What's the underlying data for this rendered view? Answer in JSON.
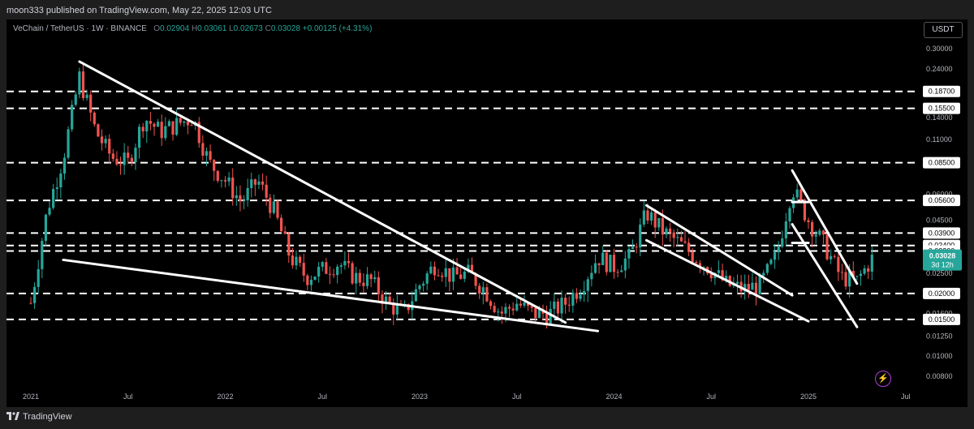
{
  "header": {
    "published_text": "moon333 published on TradingView.com, May 22, 2025 12:03 UTC"
  },
  "legend": {
    "symbol": "VeChain / TetherUS · 1W · BINANCE",
    "o_label": "O",
    "o_value": "0.02904",
    "h_label": "H",
    "h_value": "0.03061",
    "l_label": "L",
    "l_value": "0.02673",
    "c_label": "C",
    "c_value": "0.03028",
    "change": "+0.00125 (+4.31%)"
  },
  "currency_button": "USDT",
  "footer": {
    "brand": "TradingView"
  },
  "colors": {
    "up": "#26a69a",
    "down": "#ef5350",
    "background": "#000000",
    "lines": "#ffffff",
    "accent": "#b03fd8"
  },
  "icons": [
    "tradingview-logo-icon",
    "lightning-icon"
  ],
  "chart_data": {
    "type": "candlestick",
    "scale": "log",
    "y_tick_labels": [
      "0.30000",
      "0.24000",
      "0.14000",
      "0.11000",
      "0.06000",
      "0.04500",
      "0.02500",
      "0.01600",
      "0.01250",
      "0.01000",
      "0.00800"
    ],
    "x_tick_labels": [
      "2021",
      "Jul",
      "2022",
      "Jul",
      "2023",
      "Jul",
      "2024",
      "Jul",
      "2025",
      "Jul"
    ],
    "horizontal_levels": [
      "0.18700",
      "0.15500",
      "0.08500",
      "0.05600",
      "0.03900",
      "0.03400",
      "0.03200",
      "0.02000",
      "0.01500"
    ],
    "current_price": "0.03028",
    "current_countdown": "3d 12h",
    "trendlines": [
      {
        "from": [
          "2021-04",
          0.26
        ],
        "to": [
          "2023-10",
          0.0145
        ]
      },
      {
        "from": [
          "2021-03",
          0.029
        ],
        "to": [
          "2023-12",
          0.0132
        ]
      },
      {
        "from": [
          "2024-03",
          0.053
        ],
        "to": [
          "2024-12",
          0.0196
        ]
      },
      {
        "from": [
          "2024-03",
          0.036
        ],
        "to": [
          "2025-01",
          0.0147
        ]
      },
      {
        "from": [
          "2024-12",
          0.078
        ],
        "to": [
          "2025-04",
          0.0223
        ]
      },
      {
        "from": [
          "2024-12",
          0.043
        ],
        "to": [
          "2025-04",
          0.0138
        ]
      },
      {
        "from": [
          "2024-12",
          0.055
        ],
        "to": [
          "2025-01",
          0.055
        ]
      },
      {
        "from": [
          "2024-12",
          0.035
        ],
        "to": [
          "2025-01",
          0.035
        ]
      }
    ],
    "price_path": [
      [
        "2021-01",
        0.018
      ],
      [
        "2021-02",
        0.05
      ],
      [
        "2021-03",
        0.09
      ],
      [
        "2021-04",
        0.22
      ],
      [
        "2021-05",
        0.12
      ],
      [
        "2021-06",
        0.09
      ],
      [
        "2021-07",
        0.085
      ],
      [
        "2021-08",
        0.14
      ],
      [
        "2021-09",
        0.12
      ],
      [
        "2021-10",
        0.13
      ],
      [
        "2021-11",
        0.14
      ],
      [
        "2021-12",
        0.085
      ],
      [
        "2022-01",
        0.07
      ],
      [
        "2022-02",
        0.055
      ],
      [
        "2022-03",
        0.07
      ],
      [
        "2022-04",
        0.05
      ],
      [
        "2022-05",
        0.03
      ],
      [
        "2022-06",
        0.024
      ],
      [
        "2022-07",
        0.026
      ],
      [
        "2022-08",
        0.028
      ],
      [
        "2022-09",
        0.024
      ],
      [
        "2022-10",
        0.023
      ],
      [
        "2022-11",
        0.018
      ],
      [
        "2022-12",
        0.016
      ],
      [
        "2023-01",
        0.022
      ],
      [
        "2023-02",
        0.028
      ],
      [
        "2023-03",
        0.024
      ],
      [
        "2023-04",
        0.025
      ],
      [
        "2023-05",
        0.021
      ],
      [
        "2023-06",
        0.016
      ],
      [
        "2023-07",
        0.018
      ],
      [
        "2023-08",
        0.016
      ],
      [
        "2023-09",
        0.016
      ],
      [
        "2023-10",
        0.018
      ],
      [
        "2023-11",
        0.022
      ],
      [
        "2023-12",
        0.03
      ],
      [
        "2024-01",
        0.027
      ],
      [
        "2024-02",
        0.03
      ],
      [
        "2024-03",
        0.049
      ],
      [
        "2024-04",
        0.04
      ],
      [
        "2024-05",
        0.035
      ],
      [
        "2024-06",
        0.03
      ],
      [
        "2024-07",
        0.026
      ],
      [
        "2024-08",
        0.022
      ],
      [
        "2024-09",
        0.021
      ],
      [
        "2024-10",
        0.022
      ],
      [
        "2024-11",
        0.03
      ],
      [
        "2024-12",
        0.065
      ],
      [
        "2025-01",
        0.045
      ],
      [
        "2025-02",
        0.034
      ],
      [
        "2025-03",
        0.024
      ],
      [
        "2025-04",
        0.023
      ],
      [
        "2025-05",
        0.03
      ]
    ]
  }
}
